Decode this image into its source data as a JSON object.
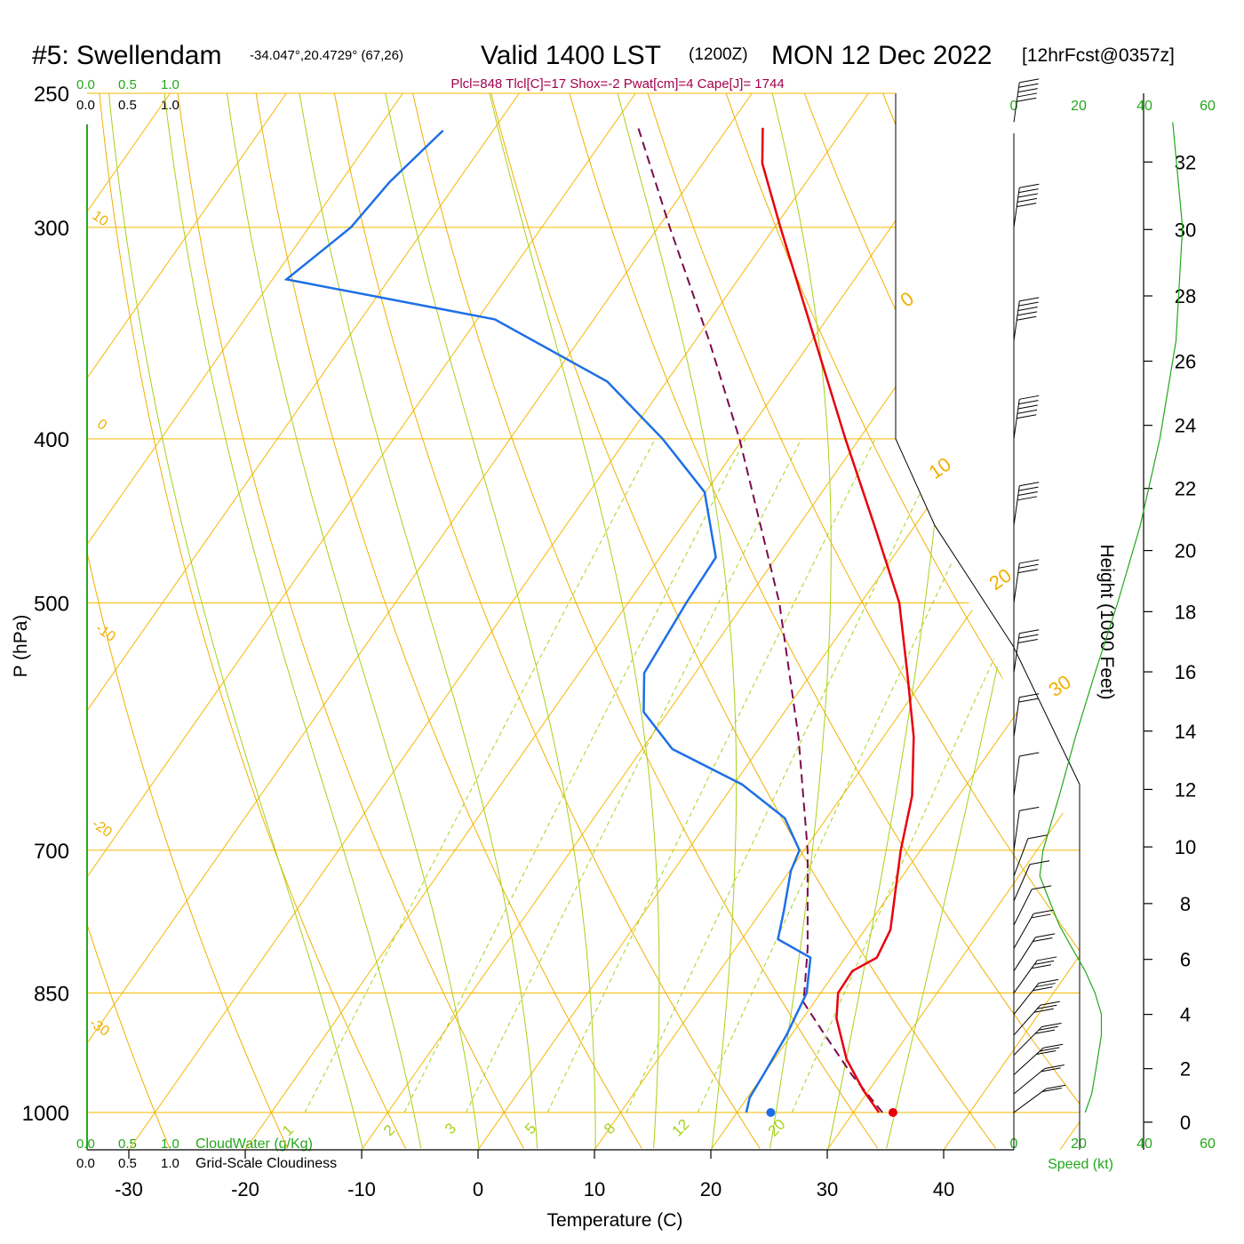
{
  "title": {
    "station": "#5: Swellendam",
    "coords": "-34.047°,20.4729° (67,26)",
    "valid": "Valid 1400 LST",
    "utc": "(1200Z)",
    "date": "MON 12 Dec 2022",
    "forecast": "[12hrFcst@0357z]"
  },
  "indices": "Plcl=848 Tlcl[C]=17 Shox=-2 Pwat[cm]=4 Cape[J]= 1744",
  "colors": {
    "temperature": "#e8000b",
    "dewpoint": "#1e6fe6",
    "parcel": "#7a0a4e",
    "isotherm_isobar": "#f5b800",
    "green": "#22a81b",
    "dry_adiabat": "#f0b000",
    "moist_adiabat": "#a6d21a",
    "mixing_ratio": "#a6d21a"
  },
  "scales": {
    "top_green": [
      "0.0",
      "0.5",
      "1.0"
    ],
    "top_black": [
      "0.0",
      "0.5",
      "1.0"
    ],
    "bottom_green": [
      "0.0",
      "0.5",
      "1.0"
    ],
    "bottom_black": [
      "0.0",
      "0.5",
      "1.0"
    ],
    "cloudwater_label": "CloudWater (g/Kg)",
    "cloudiness_label": "Grid-Scale Cloudiness"
  },
  "speed_axis": {
    "labels": [
      "0",
      "20",
      "40",
      "60"
    ],
    "title": "Speed (kt)"
  },
  "chart_data": {
    "type": "skew-t",
    "xlabel": "Temperature (C)",
    "ylabel": "P (hPa)",
    "y2label": "Height (1000 Feet)",
    "x_ticks": [
      -30,
      -20,
      -10,
      0,
      10,
      20,
      30,
      40
    ],
    "p_ticks": [
      250,
      300,
      400,
      500,
      700,
      850,
      1000
    ],
    "p_range": [
      1000,
      250
    ],
    "height_ticks": [
      0,
      2,
      4,
      6,
      8,
      10,
      12,
      14,
      16,
      18,
      20,
      22,
      24,
      26,
      28,
      30,
      32
    ],
    "dry_adiabat_labels": [
      "10",
      "0",
      "-10",
      "-20",
      "-30",
      "0",
      "10",
      "20",
      "30"
    ],
    "mixing_ratio_labels": [
      "1",
      "2",
      "3",
      "5",
      "8",
      "12",
      "20"
    ],
    "temperature_profile": [
      {
        "p": 1000,
        "t": 32.2
      },
      {
        "p": 970,
        "t": 29.5
      },
      {
        "p": 930,
        "t": 26.2
      },
      {
        "p": 880,
        "t": 22.9
      },
      {
        "p": 850,
        "t": 21.5
      },
      {
        "p": 825,
        "t": 21.4
      },
      {
        "p": 810,
        "t": 22.7
      },
      {
        "p": 780,
        "t": 22.2
      },
      {
        "p": 740,
        "t": 20.3
      },
      {
        "p": 700,
        "t": 18.3
      },
      {
        "p": 650,
        "t": 16.0
      },
      {
        "p": 600,
        "t": 12.6
      },
      {
        "p": 550,
        "t": 8.2
      },
      {
        "p": 500,
        "t": 3.3
      },
      {
        "p": 450,
        "t": -3.5
      },
      {
        "p": 400,
        "t": -11.2
      },
      {
        "p": 350,
        "t": -19.7
      },
      {
        "p": 300,
        "t": -29.5
      },
      {
        "p": 275,
        "t": -34.9
      },
      {
        "p": 262,
        "t": -37.0
      }
    ],
    "dewpoint_profile": [
      {
        "p": 1000,
        "t": 20.8
      },
      {
        "p": 980,
        "t": 20.2
      },
      {
        "p": 950,
        "t": 20.0
      },
      {
        "p": 900,
        "t": 19.6
      },
      {
        "p": 850,
        "t": 18.8
      },
      {
        "p": 810,
        "t": 17.0
      },
      {
        "p": 790,
        "t": 13.1
      },
      {
        "p": 760,
        "t": 11.9
      },
      {
        "p": 720,
        "t": 10.1
      },
      {
        "p": 700,
        "t": 9.6
      },
      {
        "p": 670,
        "t": 6.4
      },
      {
        "p": 640,
        "t": 0.7
      },
      {
        "p": 610,
        "t": -7.4
      },
      {
        "p": 580,
        "t": -12.1
      },
      {
        "p": 550,
        "t": -14.4
      },
      {
        "p": 500,
        "t": -15.0
      },
      {
        "p": 470,
        "t": -15.2
      },
      {
        "p": 430,
        "t": -20.1
      },
      {
        "p": 400,
        "t": -26.9
      },
      {
        "p": 370,
        "t": -35.1
      },
      {
        "p": 340,
        "t": -48.5
      },
      {
        "p": 322,
        "t": -68.8
      },
      {
        "p": 300,
        "t": -66.4
      },
      {
        "p": 282,
        "t": -65.8
      },
      {
        "p": 263,
        "t": -64.3
      }
    ],
    "parcel_profile": [
      {
        "p": 1000,
        "t": 32.5
      },
      {
        "p": 950,
        "t": 27.6
      },
      {
        "p": 900,
        "t": 22.9
      },
      {
        "p": 860,
        "t": 19.0
      },
      {
        "p": 850,
        "t": 18.6
      },
      {
        "p": 800,
        "t": 16.2
      },
      {
        "p": 700,
        "t": 10.3
      },
      {
        "p": 600,
        "t": 2.7
      },
      {
        "p": 500,
        "t": -7.0
      },
      {
        "p": 400,
        "t": -20.3
      },
      {
        "p": 350,
        "t": -28.8
      },
      {
        "p": 300,
        "t": -39.0
      },
      {
        "p": 262,
        "t": -47.7
      }
    ],
    "surface_temperature": 33.4,
    "surface_dewpoint": 22.9,
    "wind_profile_kt": [
      {
        "p": 1000,
        "spd": 22
      },
      {
        "p": 975,
        "spd": 24
      },
      {
        "p": 950,
        "spd": 25
      },
      {
        "p": 925,
        "spd": 26
      },
      {
        "p": 900,
        "spd": 27
      },
      {
        "p": 875,
        "spd": 27
      },
      {
        "p": 850,
        "spd": 25
      },
      {
        "p": 825,
        "spd": 22
      },
      {
        "p": 800,
        "spd": 18
      },
      {
        "p": 775,
        "spd": 14
      },
      {
        "p": 750,
        "spd": 11
      },
      {
        "p": 725,
        "spd": 8
      },
      {
        "p": 700,
        "spd": 9
      },
      {
        "p": 650,
        "spd": 14
      },
      {
        "p": 600,
        "spd": 19
      },
      {
        "p": 550,
        "spd": 25
      },
      {
        "p": 500,
        "spd": 32
      },
      {
        "p": 450,
        "spd": 39
      },
      {
        "p": 400,
        "spd": 45
      },
      {
        "p": 350,
        "spd": 50
      },
      {
        "p": 300,
        "spd": 52
      },
      {
        "p": 260,
        "spd": 49
      }
    ]
  }
}
